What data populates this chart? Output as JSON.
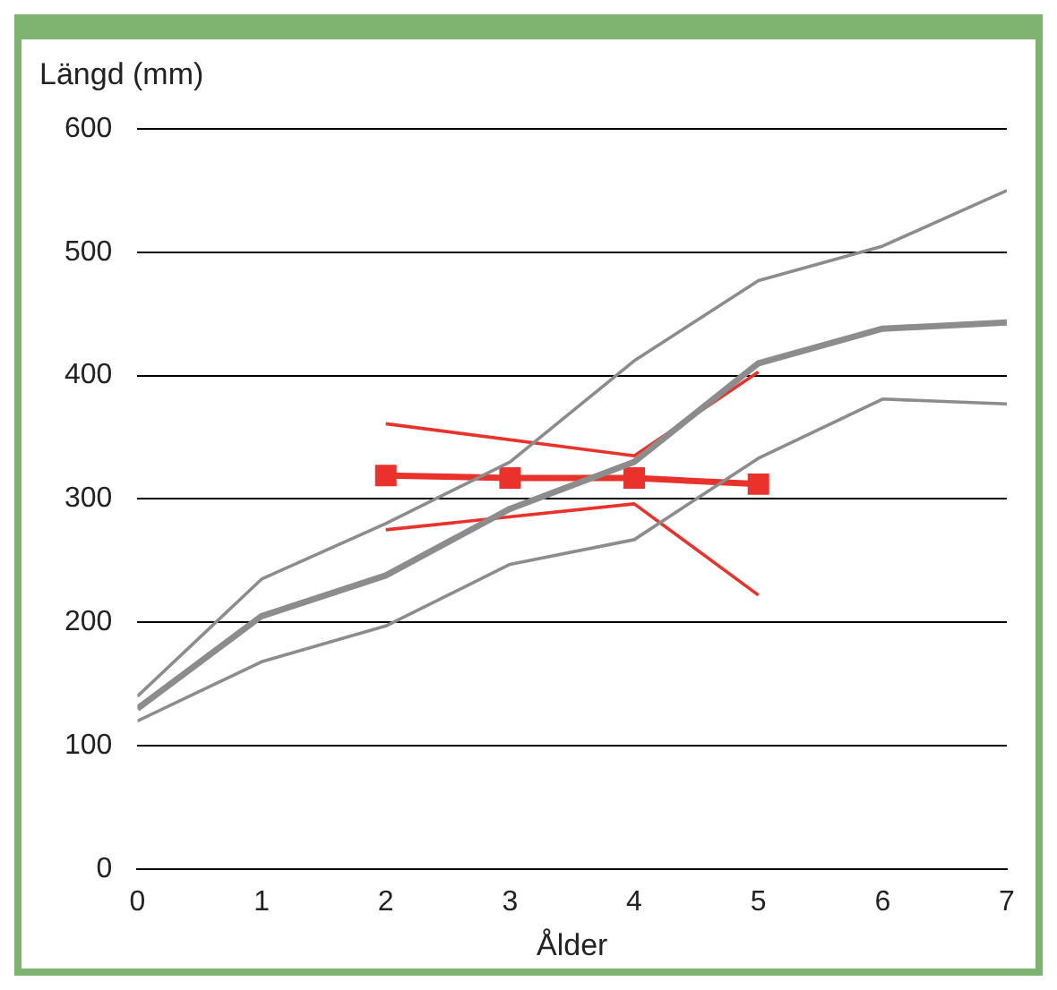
{
  "chart_data": {
    "type": "line",
    "xlabel": "Ålder",
    "ylabel": "Längd (mm)",
    "x": [
      0,
      1,
      2,
      3,
      4,
      5,
      6,
      7
    ],
    "xlim": [
      0,
      7
    ],
    "xticks": [
      0,
      1,
      2,
      3,
      4,
      5,
      6,
      7
    ],
    "ylim": [
      0,
      600
    ],
    "yticks": [
      0,
      100,
      200,
      300,
      400,
      500,
      600
    ],
    "grid": "y",
    "legend": false,
    "series": [
      {
        "color": "#8c8c8c",
        "values": [
          140,
          235,
          280,
          330,
          412,
          477,
          505,
          550
        ],
        "line_style": "solid",
        "marker": "none"
      },
      {
        "color": "#8c8c8c",
        "values": [
          120,
          168,
          197,
          247,
          267,
          333,
          381,
          377
        ],
        "line_style": "solid",
        "marker": "none"
      },
      {
        "color": "#8c8c8c",
        "values": [
          130,
          205,
          238,
          292,
          330,
          410,
          438,
          443
        ],
        "line_style": "solid",
        "marker": "none"
      },
      {
        "color": "#e8322b",
        "values": [
          null,
          null,
          361,
          null,
          335,
          403,
          null,
          null
        ],
        "line_style": "solid",
        "marker": "none"
      },
      {
        "color": "#e8322b",
        "values": [
          null,
          null,
          275,
          null,
          296,
          222,
          null,
          null
        ],
        "line_style": "solid",
        "marker": "none"
      },
      {
        "color": "#e8322b",
        "values": [
          null,
          null,
          319,
          317,
          317,
          312,
          null,
          null
        ],
        "line_style": "solid",
        "marker": "square"
      }
    ]
  }
}
